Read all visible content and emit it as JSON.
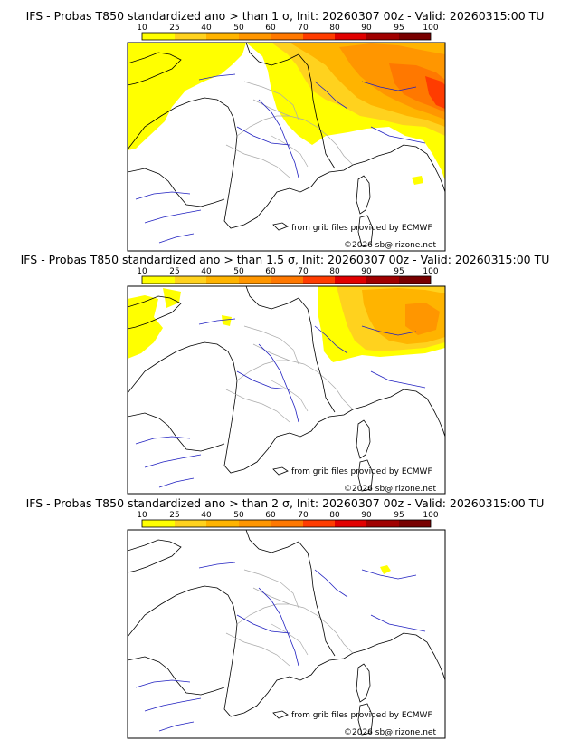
{
  "colors": {
    "legend": [
      "#ffff00",
      "#ffd21e",
      "#ffb400",
      "#ff9600",
      "#ff7800",
      "#ff3c00",
      "#e10000",
      "#a00000",
      "#780000",
      "#460000"
    ],
    "coast": "#000000",
    "rivers": "#2020c0",
    "borders": "#aaaaaa",
    "frame": "#000000"
  },
  "legend_ticks": [
    "10",
    "25",
    "40",
    "50",
    "60",
    "70",
    "80",
    "90",
    "95",
    "100"
  ],
  "panels": [
    {
      "title": "IFS - Probas T850  standardized ano > than 1 σ, Init: 20260307 00z - Valid: 20260315:00 TU",
      "credit": "from grib files provided by ECMWF",
      "copyright": "©2026 sb@irizone.net"
    },
    {
      "title": "IFS - Probas T850  standardized ano > than 1.5 σ, Init: 20260307 00z - Valid: 20260315:00 TU",
      "credit": "from grib files provided by ECMWF",
      "copyright": "©2026 sb@irizone.net"
    },
    {
      "title": "IFS - Probas T850  standardized ano > than 2 σ, Init: 20260307 00z - Valid: 20260315:00 TU",
      "credit": "from grib files provided by ECMWF",
      "copyright": "©2026 sb@irizone.net"
    }
  ]
}
